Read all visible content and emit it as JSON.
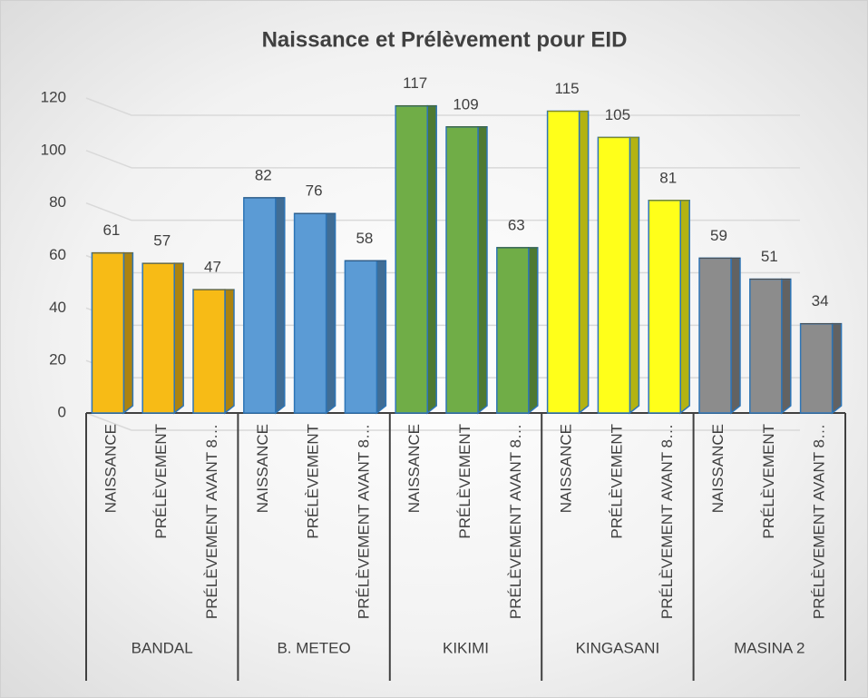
{
  "chart_data": {
    "type": "bar",
    "title": "Naissance et Prélèvement pour EID",
    "categories": [
      "NAISSANCE",
      "PRÉLÈVEMENT",
      "PRÉLÈVEMENT AVANT 8…",
      "NAISSANCE",
      "PRÉLÈVEMENT",
      "PRÉLÈVEMENT AVANT 8…",
      "NAISSANCE",
      "PRÉLÈVEMENT",
      "PRÉLÈVEMENT AVANT 8…",
      "NAISSANCE",
      "PRÉLÈVEMENT",
      "PRÉLÈVEMENT AVANT 8…",
      "NAISSANCE",
      "PRÉLÈVEMENT",
      "PRÉLÈVEMENT AVANT 8…"
    ],
    "groups": [
      {
        "name": "BANDAL",
        "color": "#f7bb16",
        "values": [
          61,
          57,
          47
        ]
      },
      {
        "name": "B. METEO",
        "color": "#5b9bd5",
        "values": [
          82,
          76,
          58
        ]
      },
      {
        "name": "KIKIMI",
        "color": "#70ad47",
        "values": [
          117,
          109,
          63
        ]
      },
      {
        "name": "KINGASANI",
        "color": "#ffff1a",
        "values": [
          115,
          105,
          81
        ]
      },
      {
        "name": "MASINA 2",
        "color": "#8c8c8c",
        "values": [
          59,
          51,
          34
        ]
      }
    ],
    "ylim": [
      0,
      120
    ],
    "yticks": [
      0,
      20,
      40,
      60,
      80,
      100,
      120
    ],
    "grid": true
  }
}
